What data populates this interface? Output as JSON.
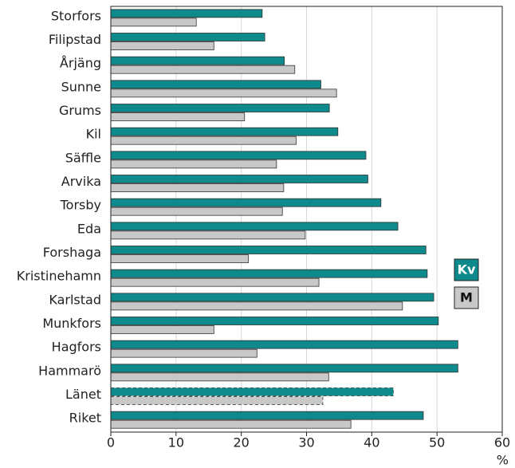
{
  "chart_data": {
    "type": "hbar",
    "categories": [
      "Storfors",
      "Filipstad",
      "Årjäng",
      "Sunne",
      "Grums",
      "Kil",
      "Säffle",
      "Arvika",
      "Torsby",
      "Eda",
      "Forshaga",
      "Kristinehamn",
      "Karlstad",
      "Munkfors",
      "Hagfors",
      "Hammarö",
      "Länet",
      "Riket"
    ],
    "series": [
      {
        "name": "Kv",
        "color": "#0f8a8c",
        "values": [
          23.2,
          23.6,
          26.6,
          32.2,
          33.5,
          34.8,
          39.1,
          39.4,
          41.4,
          44.0,
          48.3,
          48.5,
          49.5,
          50.2,
          53.2,
          53.2,
          43.3,
          47.9
        ]
      },
      {
        "name": "M",
        "color": "#c8c8c8",
        "values": [
          13.1,
          15.8,
          28.2,
          34.6,
          20.5,
          28.4,
          25.4,
          26.5,
          26.3,
          29.8,
          21.1,
          31.9,
          44.7,
          15.8,
          22.4,
          33.4,
          32.5,
          36.8
        ]
      }
    ],
    "highlight": "Länet",
    "xlabel": "%",
    "xlim": [
      0,
      60
    ],
    "xticks": [
      0,
      10,
      20,
      30,
      40,
      50,
      60
    ],
    "grid": true
  }
}
